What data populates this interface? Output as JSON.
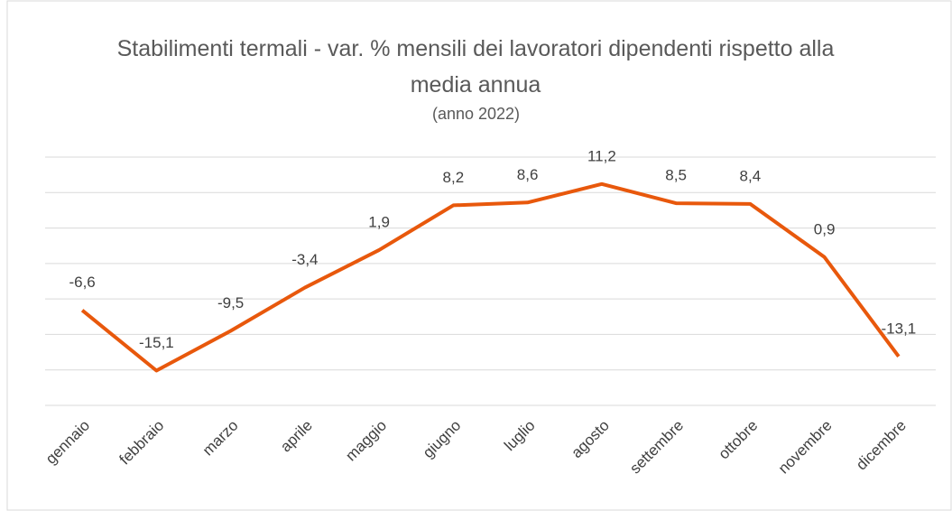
{
  "chart_data": {
    "type": "line",
    "title": "Stabilimenti termali - var. % mensili dei lavoratori dipendenti rispetto alla media annua",
    "subtitle": "(anno 2022)",
    "categories": [
      "gennaio",
      "febbraio",
      "marzo",
      "aprile",
      "maggio",
      "giugno",
      "luglio",
      "agosto",
      "settembre",
      "ottobre",
      "novembre",
      "dicembre"
    ],
    "series": [
      {
        "name": "var. %",
        "color": "#e8580c",
        "values": [
          -6.6,
          -15.1,
          -9.5,
          -3.4,
          1.9,
          8.2,
          8.6,
          11.2,
          8.5,
          8.4,
          0.9,
          -13.1
        ],
        "value_labels": [
          "-6,6",
          "-15,1",
          "-9,5",
          "-3,4",
          "1,9",
          "8,2",
          "8,6",
          "11,2",
          "8,5",
          "8,4",
          "0,9",
          "-13,1"
        ]
      }
    ],
    "ylim": [
      -20,
      15
    ],
    "yticks": [
      -20,
      -15,
      -10,
      -5,
      0,
      5,
      10,
      15
    ],
    "grid": true
  }
}
